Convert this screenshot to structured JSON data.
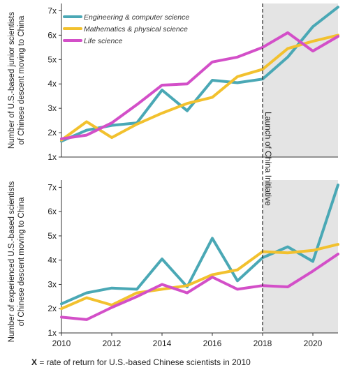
{
  "chart_data": [
    {
      "type": "line",
      "ylabel": "Number of U.S.-based junior scientists of Chinese descent moving to China",
      "yticks": [
        "1x",
        "2x",
        "3x",
        "4x",
        "5x",
        "6x",
        "7x"
      ],
      "ylim": [
        1,
        7.3
      ],
      "xlim": [
        2010,
        2021
      ],
      "legend": "top-left",
      "x": [
        2010,
        2011,
        2012,
        2013,
        2014,
        2015,
        2016,
        2017,
        2018,
        2019,
        2020,
        2021
      ],
      "series": [
        {
          "name": "Engineering & computer science",
          "color": "#4aa8b5",
          "values": [
            1.65,
            2.1,
            2.3,
            2.4,
            3.75,
            2.9,
            4.15,
            4.05,
            4.2,
            5.1,
            6.35,
            7.15
          ]
        },
        {
          "name": "Mathematics & physical science",
          "color": "#f2c12e",
          "values": [
            1.7,
            2.45,
            1.8,
            2.35,
            2.8,
            3.2,
            3.45,
            4.3,
            4.6,
            5.45,
            5.75,
            6.0
          ]
        },
        {
          "name": "Life science",
          "color": "#d34fc8",
          "values": [
            1.75,
            1.9,
            2.4,
            3.15,
            3.95,
            4.0,
            4.9,
            5.1,
            5.5,
            6.1,
            5.35,
            5.95
          ]
        }
      ]
    },
    {
      "type": "line",
      "ylabel": "Number of experienced U.S.-based scientists of Chinese descent moving to China",
      "yticks": [
        "1x",
        "2x",
        "3x",
        "4x",
        "5x",
        "6x",
        "7x"
      ],
      "ylim": [
        1,
        7.3
      ],
      "xlim": [
        2010,
        2021
      ],
      "xticks": [
        "2010",
        "2012",
        "2014",
        "2016",
        "2018",
        "2020"
      ],
      "x": [
        2010,
        2011,
        2012,
        2013,
        2014,
        2015,
        2016,
        2017,
        2018,
        2019,
        2020,
        2021
      ],
      "series": [
        {
          "name": "Engineering & computer science",
          "color": "#4aa8b5",
          "values": [
            2.2,
            2.65,
            2.85,
            2.8,
            4.05,
            2.9,
            4.9,
            3.15,
            4.1,
            4.55,
            3.95,
            7.1
          ]
        },
        {
          "name": "Mathematics & physical science",
          "color": "#f2c12e",
          "values": [
            2.0,
            2.45,
            2.15,
            2.65,
            2.8,
            2.95,
            3.4,
            3.6,
            4.35,
            4.3,
            4.4,
            4.65
          ]
        },
        {
          "name": "Life science",
          "color": "#d34fc8",
          "values": [
            1.65,
            1.55,
            2.05,
            2.5,
            3.0,
            2.65,
            3.3,
            2.8,
            2.95,
            2.9,
            3.55,
            4.25
          ]
        }
      ]
    }
  ],
  "annotation": {
    "label": "Launch of China Initiative",
    "year": 2018
  },
  "footnote": {
    "lead": "X",
    "text": " = rate of return for U.S.-based Chinese scientists in 2010"
  }
}
